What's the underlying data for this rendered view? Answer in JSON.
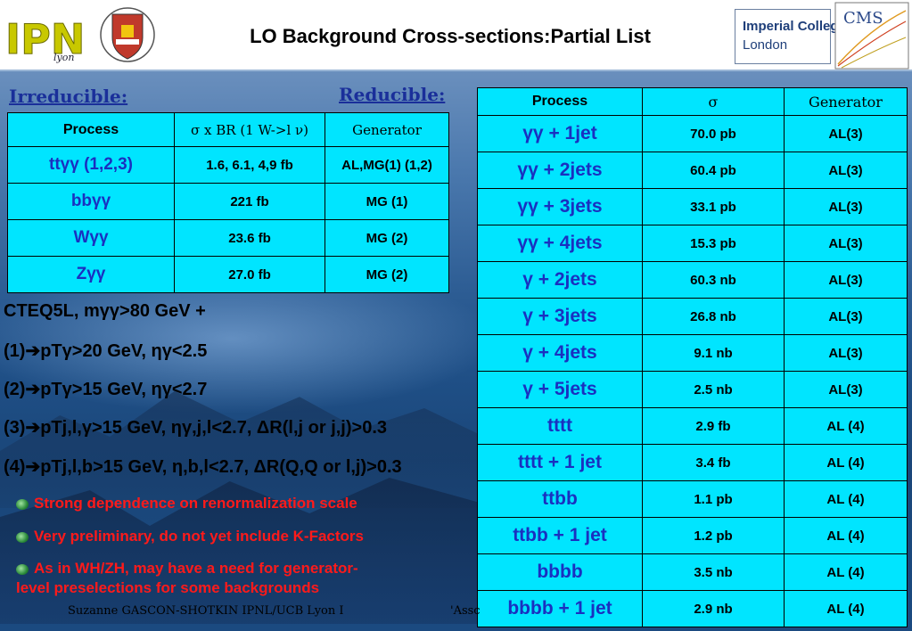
{
  "header": {
    "title": "LO Background Cross-sections:Partial List",
    "logos": {
      "ipnl": "IPNL Lyon",
      "imperial_line1": "Imperial College",
      "imperial_line2": "London",
      "cms": "CMS"
    }
  },
  "labels": {
    "irreducible": "Irreducible:",
    "reducible": "Reducible:"
  },
  "irreducible_table": {
    "headers": [
      "Process",
      "σ x BR (1 W->l ν)",
      "Generator"
    ],
    "rows": [
      {
        "process": "ttγγ (1,2,3)",
        "value": "1.6, 6.1, 4,9 fb",
        "generator": "AL,MG(1) (1,2)"
      },
      {
        "process": "bbγγ",
        "value": "221 fb",
        "generator": "MG (1)"
      },
      {
        "process": "Wγγ",
        "value": "23.6 fb",
        "generator": "MG (2)"
      },
      {
        "process": "Zγγ",
        "value": "27.0 fb",
        "generator": "MG (2)"
      }
    ]
  },
  "reducible_table": {
    "headers": [
      "Process",
      "σ",
      "Generator"
    ],
    "rows": [
      {
        "process": "γγ + 1jet",
        "value": "70.0 pb",
        "generator": "AL(3)"
      },
      {
        "process": "γγ + 2jets",
        "value": "60.4 pb",
        "generator": "AL(3)"
      },
      {
        "process": "γγ + 3jets",
        "value": "33.1 pb",
        "generator": "AL(3)"
      },
      {
        "process": "γγ + 4jets",
        "value": "15.3 pb",
        "generator": "AL(3)"
      },
      {
        "process": "γ + 2jets",
        "value": "60.3 nb",
        "generator": "AL(3)"
      },
      {
        "process": "γ + 3jets",
        "value": "26.8 nb",
        "generator": "AL(3)"
      },
      {
        "process": "γ + 4jets",
        "value": "9.1 nb",
        "generator": "AL(3)"
      },
      {
        "process": "γ + 5jets",
        "value": "2.5 nb",
        "generator": "AL(3)"
      },
      {
        "process": "tttt",
        "value": "2.9 fb",
        "generator": "AL (4)"
      },
      {
        "process": "tttt + 1 jet",
        "value": "3.4 fb",
        "generator": "AL (4)"
      },
      {
        "process": "ttbb",
        "value": "1.1 pb",
        "generator": "AL (4)"
      },
      {
        "process": "ttbb + 1 jet",
        "value": "1.2 pb",
        "generator": "AL (4)"
      },
      {
        "process": "bbbb",
        "value": "3.5 nb",
        "generator": "AL (4)"
      },
      {
        "process": "bbbb + 1 jet",
        "value": "2.9 nb",
        "generator": "AL (4)"
      }
    ]
  },
  "cuts": [
    "CTEQ5L, mγγ>80 GeV +",
    "(1)➔pTγ>20 GeV, ηγ<2.5",
    "(2)➔pTγ>15 GeV, ηγ<2.7",
    "(3)➔pTj,l,γ>15 GeV, ηγ,j,l<2.7, ΔR(l,j or j,j)>0.3",
    "(4)➔pTj,l,b>15 GeV, η,b,l<2.7, ΔR(Q,Q or l,j)>0.3"
  ],
  "bullets": [
    "Strong dependence on renormalization scale",
    "Very preliminary, do not yet include K-Factors",
    "As in WH/ZH, may have a need for generator-",
    "level preselections for some backgrounds"
  ],
  "footer": {
    "author": "Suzanne GASCON-SHOTKIN IPNL/UCB Lyon I",
    "partial": "'Assc"
  }
}
